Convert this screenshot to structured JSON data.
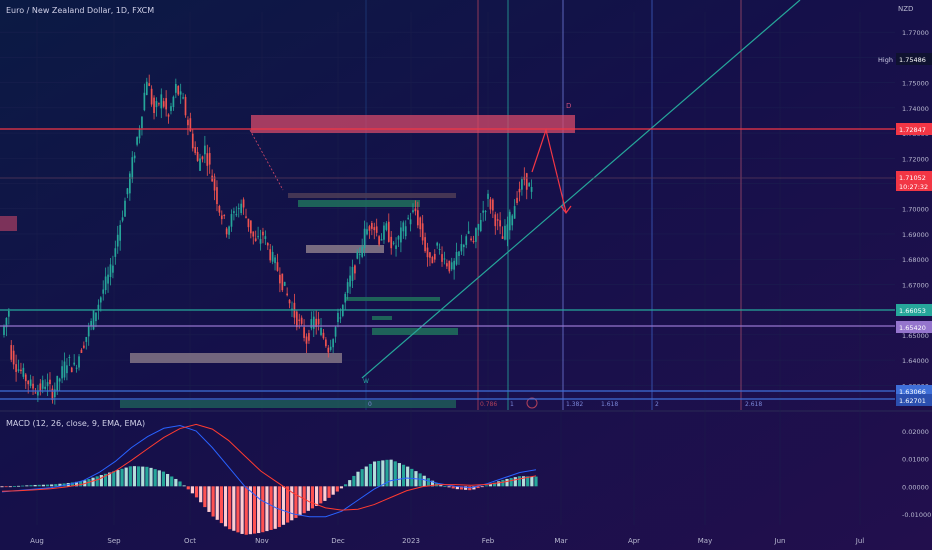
{
  "header": {
    "symbol_title": "Euro / New Zealand Dollar, 1D, FXCM",
    "currency": "NZD",
    "macd_title": "MACD (12, 26, close, 9, EMA, EMA)"
  },
  "colors": {
    "background": "#100d33",
    "up_candle": "#26a69a",
    "down_candle": "#ef5350",
    "trendline": "#26a69a",
    "supply_zone": "#d64a6a",
    "macd_line": "#2962ff",
    "signal_line": "#ff3b30",
    "level_teal": "#26a69a",
    "level_purple": "#9575cd",
    "level_red": "#f23645",
    "level_blue": "#3f6fd8"
  },
  "chart_data": {
    "type": "candlestick",
    "title": "Euro / New Zealand Dollar, 1D, FXCM",
    "x_ticks": [
      "Aug",
      "Sep",
      "Oct",
      "Nov",
      "Dec",
      "2023",
      "Feb",
      "Mar",
      "Apr",
      "May",
      "Jun",
      "Jul"
    ],
    "y_ticks": [
      1.77,
      1.76,
      1.75,
      1.74,
      1.73,
      1.72,
      1.71,
      1.7,
      1.69,
      1.68,
      1.67,
      1.66,
      1.65,
      1.64,
      1.63
    ],
    "y_tick_labels": [
      "1.77000",
      "1.76000",
      "1.75000",
      "1.74000",
      "1.73000",
      "1.72000",
      "1.71000",
      "1.70000",
      "1.69000",
      "1.68000",
      "1.67000",
      "1.66000",
      "1.65000",
      "1.64000",
      "1.63000"
    ],
    "ylim": [
      1.621,
      1.778
    ],
    "price_path": [
      [
        1.65,
        1.66
      ],
      [
        1.645,
        1.638
      ],
      [
        1.638,
        1.634
      ],
      [
        1.634,
        1.63
      ],
      [
        1.63,
        1.628
      ],
      [
        1.628,
        1.631
      ],
      [
        1.631,
        1.627
      ],
      [
        1.627,
        1.633
      ],
      [
        1.633,
        1.64
      ],
      [
        1.64,
        1.637
      ],
      [
        1.637,
        1.645
      ],
      [
        1.645,
        1.652
      ],
      [
        1.652,
        1.66
      ],
      [
        1.66,
        1.668
      ],
      [
        1.668,
        1.675
      ],
      [
        1.675,
        1.69
      ],
      [
        1.69,
        1.703
      ],
      [
        1.703,
        1.718
      ],
      [
        1.718,
        1.733
      ],
      [
        1.733,
        1.752
      ],
      [
        1.752,
        1.738
      ],
      [
        1.738,
        1.744
      ],
      [
        1.744,
        1.736
      ],
      [
        1.736,
        1.748
      ],
      [
        1.748,
        1.742
      ],
      [
        1.742,
        1.73
      ],
      [
        1.73,
        1.718
      ],
      [
        1.718,
        1.724
      ],
      [
        1.724,
        1.712
      ],
      [
        1.712,
        1.7
      ],
      [
        1.7,
        1.692
      ],
      [
        1.692,
        1.698
      ],
      [
        1.698,
        1.702
      ],
      [
        1.702,
        1.694
      ],
      [
        1.694,
        1.686
      ],
      [
        1.686,
        1.69
      ],
      [
        1.69,
        1.682
      ],
      [
        1.682,
        1.676
      ],
      [
        1.676,
        1.668
      ],
      [
        1.668,
        1.66
      ],
      [
        1.66,
        1.654
      ],
      [
        1.654,
        1.648
      ],
      [
        1.648,
        1.656
      ],
      [
        1.656,
        1.651
      ],
      [
        1.651,
        1.645
      ],
      [
        1.645,
        1.653
      ],
      [
        1.653,
        1.662
      ],
      [
        1.662,
        1.672
      ],
      [
        1.672,
        1.68
      ],
      [
        1.68,
        1.69
      ],
      [
        1.69,
        1.695
      ],
      [
        1.695,
        1.688
      ],
      [
        1.688,
        1.692
      ],
      [
        1.692,
        1.684
      ],
      [
        1.684,
        1.69
      ],
      [
        1.69,
        1.696
      ],
      [
        1.696,
        1.699
      ],
      [
        1.699,
        1.688
      ],
      [
        1.688,
        1.678
      ],
      [
        1.678,
        1.685
      ],
      [
        1.685,
        1.68
      ],
      [
        1.68,
        1.676
      ],
      [
        1.676,
        1.682
      ],
      [
        1.682,
        1.69
      ],
      [
        1.69,
        1.686
      ],
      [
        1.686,
        1.697
      ],
      [
        1.697,
        1.704
      ],
      [
        1.704,
        1.696
      ],
      [
        1.696,
        1.688
      ],
      [
        1.688,
        1.696
      ],
      [
        1.696,
        1.705
      ],
      [
        1.705,
        1.712
      ],
      [
        1.712,
        1.707
      ]
    ],
    "macd": {
      "zero_level": 0.0,
      "y_ticks": [
        0.02,
        0.01,
        0.0,
        -0.01
      ],
      "y_tick_labels": [
        "0.02000",
        "0.01000",
        "0.00000",
        "-0.01000"
      ],
      "ylim": [
        -0.014,
        0.024
      ],
      "macd_line": [
        -0.002,
        -0.0015,
        -0.001,
        -0.0005,
        0.0005,
        0.002,
        0.005,
        0.009,
        0.014,
        0.018,
        0.021,
        0.022,
        0.02,
        0.014,
        0.007,
        0.0,
        -0.005,
        -0.008,
        -0.01,
        -0.011,
        -0.011,
        -0.009,
        -0.005,
        -0.001,
        0.002,
        0.003,
        0.0025,
        0.001,
        0.0,
        -0.0005,
        0.001,
        0.003,
        0.005,
        0.006
      ],
      "signal_line": [
        -0.0018,
        -0.0016,
        -0.0013,
        -0.0009,
        -0.0002,
        0.0008,
        0.0026,
        0.0055,
        0.0094,
        0.0136,
        0.0177,
        0.0209,
        0.0224,
        0.0207,
        0.0166,
        0.011,
        0.0055,
        0.0015,
        -0.0025,
        -0.0056,
        -0.0078,
        -0.0086,
        -0.0083,
        -0.0066,
        -0.0041,
        -0.0016,
        -0.0001,
        0.0006,
        0.0006,
        0.0004,
        0.0007,
        0.0015,
        0.0027,
        0.0038
      ]
    },
    "price_labels": {
      "high_label": "High",
      "high_value": "1.75486",
      "resistance": "1.72847",
      "last_price": "1.71052",
      "countdown": "10:27:32",
      "level_teal": "1.66053",
      "level_purple": "1.65420",
      "level_low_1": "1.63066",
      "level_low_2": "1.62701"
    },
    "annotations": {
      "point_d": "D",
      "point_w": "W",
      "fib_labels": [
        "0",
        "0.786",
        "1",
        "1.382",
        "1.618",
        "2",
        "2.618"
      ]
    }
  }
}
